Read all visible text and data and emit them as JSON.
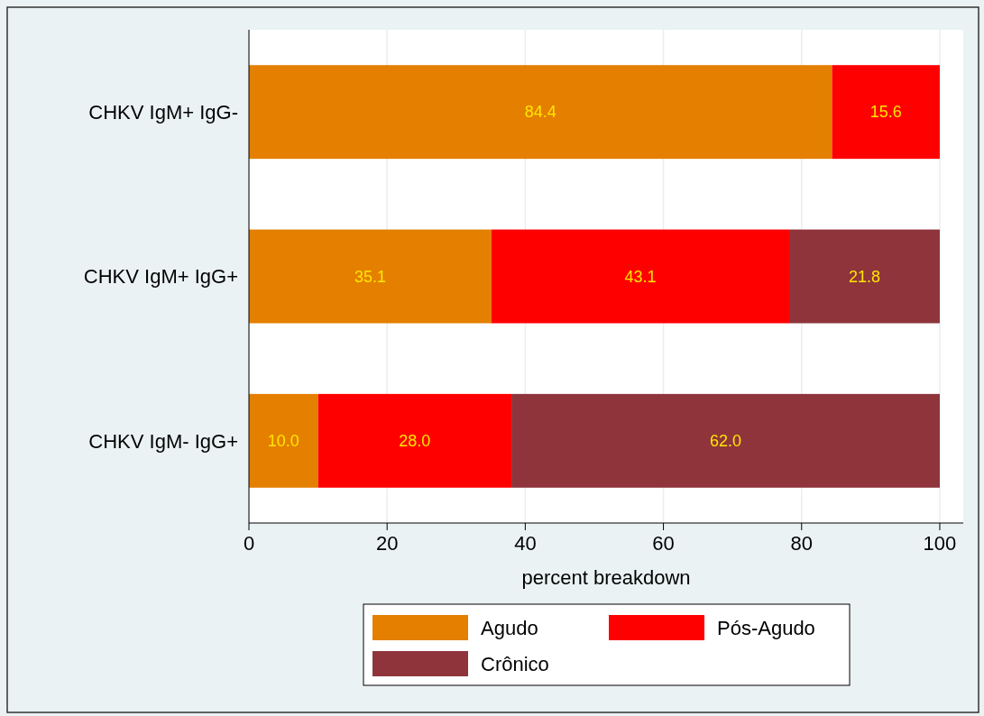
{
  "chart_data": {
    "type": "bar",
    "orientation": "horizontal",
    "stacked": true,
    "xlabel": "percent breakdown",
    "categories": [
      "CHKV IgM+ IgG-",
      "CHKV IgM+ IgG+",
      "CHKV IgM- IgG+"
    ],
    "series": [
      {
        "name": "Agudo",
        "color": "#e47f00",
        "values": [
          84.4,
          35.1,
          10.0
        ],
        "value_labels": [
          "84.4",
          "35.1",
          "10.0"
        ]
      },
      {
        "name": "Pós-Agudo",
        "color": "#ff0000",
        "values": [
          15.6,
          43.1,
          28.0
        ],
        "value_labels": [
          "15.6",
          "43.1",
          "28.0"
        ]
      },
      {
        "name": "Crônico",
        "color": "#8f343b",
        "values": [
          null,
          21.8,
          62.0
        ],
        "value_labels": [
          null,
          "21.8",
          "62.0"
        ]
      }
    ],
    "xlim": [
      0,
      103.4
    ],
    "xticks": [
      0,
      20,
      40,
      60,
      80,
      100
    ],
    "grid": "x",
    "legend": "bottom"
  }
}
